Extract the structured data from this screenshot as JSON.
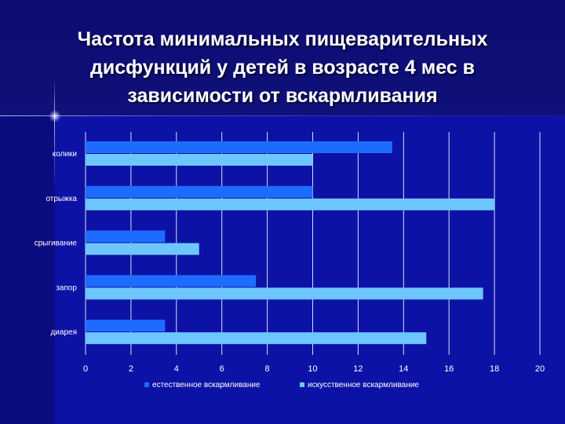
{
  "slide": {
    "title_lines": [
      "Частота минимальных пищеварительных",
      "дисфункций у детей в возрасте 4 мес в",
      "зависимости от вскармливания"
    ]
  },
  "chart_data": {
    "type": "bar",
    "orientation": "horizontal",
    "title": "Частота минимальных пищеварительных дисфункций у детей в возрасте 4 мес в зависимости от вскармливания",
    "categories": [
      "колики",
      "отрыжка",
      "срыгивание",
      "запор",
      "диарея"
    ],
    "series": [
      {
        "name": "естественное вскармливание",
        "values": [
          13.5,
          10,
          3.5,
          7.5,
          3.5
        ],
        "color": "#1e6cff"
      },
      {
        "name": "искусственное вскармливание",
        "values": [
          10,
          18,
          5,
          17.5,
          15
        ],
        "color": "#6ec6ff"
      }
    ],
    "xlim": [
      0,
      20
    ],
    "x_ticks": [
      "0",
      "2",
      "4",
      "6",
      "8",
      "10",
      "12",
      "14",
      "16",
      "18",
      "20"
    ],
    "grid": "vertical",
    "legend_position": "bottom",
    "colors": {
      "grid": "#ffffff",
      "text": "#ffffff"
    }
  }
}
